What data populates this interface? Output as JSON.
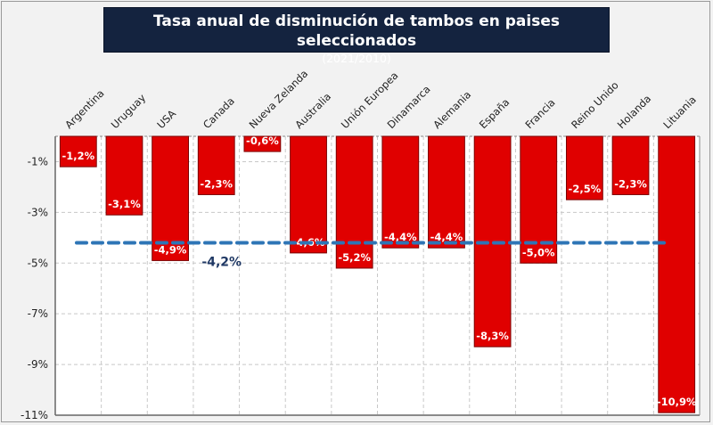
{
  "chart_data": {
    "type": "bar",
    "title": "Tasa anual de disminución de tambos en paises seleccionados",
    "subtitle": "(2021/2010)",
    "xlabel": "",
    "ylabel": "",
    "categories": [
      "Argentina",
      "Uruguay",
      "USA",
      "Canada",
      "Nueva Zelanda",
      "Australia",
      "Unión Europea",
      "Dinamarca",
      "Alemania",
      "España",
      "Francia",
      "Reino Unido",
      "Holanda",
      "Lituania"
    ],
    "values": [
      -1.2,
      -3.1,
      -4.9,
      -2.3,
      -0.6,
      -4.6,
      -5.2,
      -4.4,
      -4.4,
      -8.3,
      -5.0,
      -2.5,
      -2.3,
      -10.9
    ],
    "data_labels": [
      "-1,2%",
      "-3,1%",
      "-4,9%",
      "-2,3%",
      "-0,6%",
      "-4,6%",
      "-5,2%",
      "-4,4%",
      "-4,4%",
      "-8,3%",
      "-5,0%",
      "-2,5%",
      "-2,3%",
      "-10,9%"
    ],
    "ylim": [
      -11,
      0
    ],
    "yticks": [
      -1,
      -3,
      -5,
      -7,
      -9,
      -11
    ],
    "ytick_labels": [
      "-1%",
      "-3%",
      "-5%",
      "-7%",
      "-9%",
      "-11%"
    ],
    "grid": true,
    "legend": "none",
    "bar_color": "#e00000",
    "average_line": {
      "value": -4.2,
      "label": "-4,2%",
      "color": "#2e75b6",
      "style": "dashed"
    }
  }
}
